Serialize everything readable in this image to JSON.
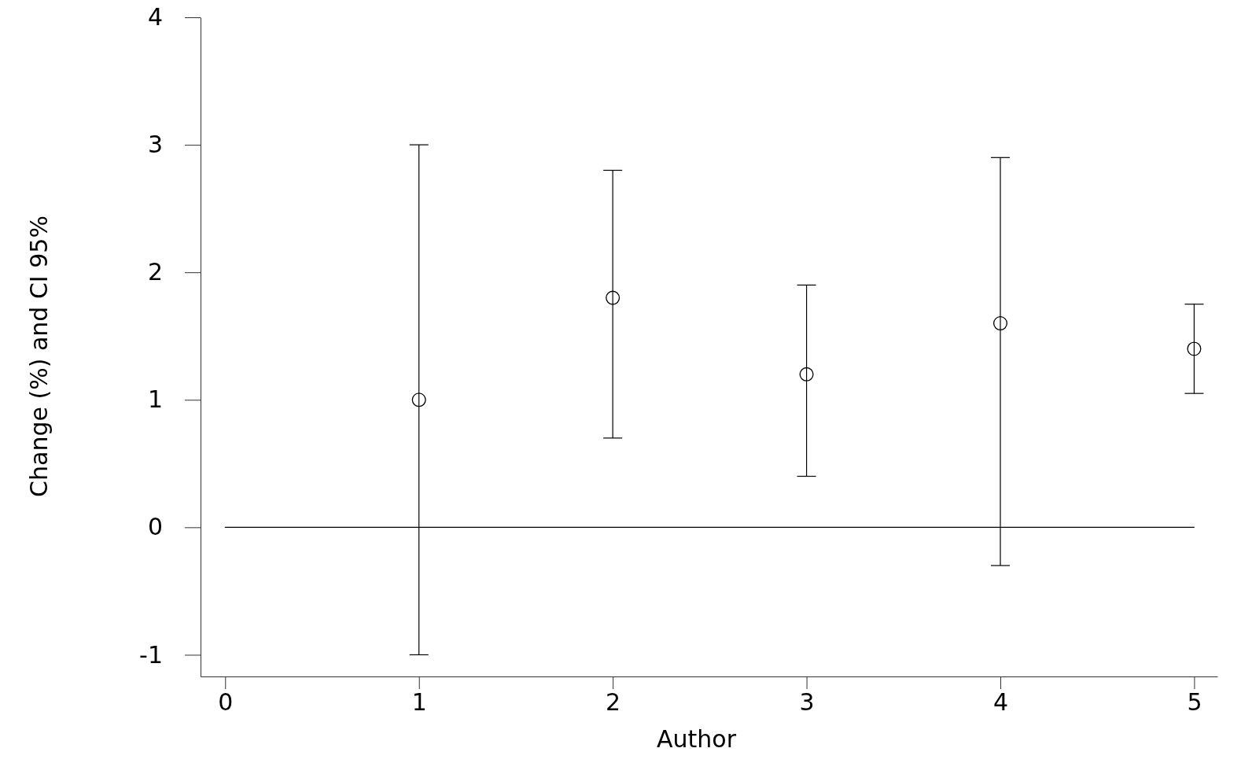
{
  "chart_data": {
    "type": "scatter",
    "xlabel": "Author",
    "ylabel": "Change (%) and CI 95%",
    "xlim": [
      -0.127,
      5.12
    ],
    "ylim": [
      -1.17,
      4.0
    ],
    "xticks": [
      0,
      1,
      2,
      3,
      4,
      5
    ],
    "yticks": [
      -1,
      0,
      1,
      2,
      3,
      4
    ],
    "series": [
      {
        "type": "line",
        "color": "#000000",
        "x": [
          0,
          5
        ],
        "values": [
          0,
          0
        ],
        "line_style": "solid"
      },
      {
        "color": "#000000",
        "marker": "circle",
        "x": [
          1,
          2,
          3,
          4,
          5
        ],
        "values": [
          1.0,
          1.8,
          1.2,
          1.6,
          1.4
        ],
        "errors": [
          [
            -1.0,
            3.0
          ],
          [
            0.7,
            2.8
          ],
          [
            0.4,
            1.9
          ],
          [
            -0.3,
            2.9
          ],
          [
            1.05,
            1.75
          ]
        ]
      }
    ]
  }
}
